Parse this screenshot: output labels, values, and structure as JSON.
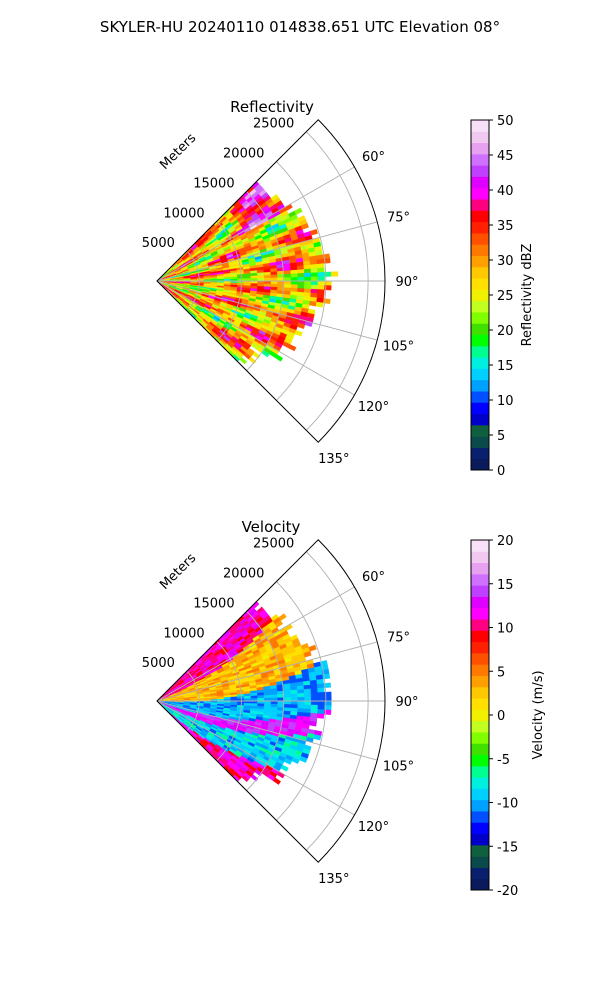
{
  "figure_title": "SKYLER-HU  20240110  014838.651 UTC Elevation 08°",
  "colormap": [
    "#0a1a5a",
    "#08206e",
    "#0a4a4a",
    "#106040",
    "#0000c8",
    "#0000ff",
    "#0050ff",
    "#00a0ff",
    "#00d0ff",
    "#00f0e0",
    "#00ff90",
    "#00ff00",
    "#40e000",
    "#80ff00",
    "#c0ff20",
    "#f0f000",
    "#ffe000",
    "#ffc800",
    "#ffa000",
    "#ff7800",
    "#ff5000",
    "#ff2000",
    "#ff0000",
    "#ff0080",
    "#ff00ff",
    "#e000ff",
    "#c040ff",
    "#d070ff",
    "#e8a0f0",
    "#f0c8f0",
    "#f8e0f8"
  ],
  "chart_data": [
    {
      "type": "heatmap",
      "projection": "polar-sector",
      "title": "Reflectivity",
      "radial_label": "Meters",
      "theta_range_deg": [
        45,
        135
      ],
      "theta_ticks": [
        "60°",
        "75°",
        "90°",
        "105°",
        "120°",
        "135°"
      ],
      "r_max": 27000,
      "r_ticks": [
        "5000",
        "10000",
        "15000",
        "20000",
        "25000"
      ],
      "colorbar": {
        "label": "Reflectivity dBZ",
        "range": [
          0,
          50
        ],
        "ticks": [
          "0",
          "5",
          "10",
          "15",
          "20",
          "25",
          "30",
          "35",
          "40",
          "45",
          "50"
        ]
      },
      "typical_value": 30
    },
    {
      "type": "heatmap",
      "projection": "polar-sector",
      "title": "Velocity",
      "radial_label": "Meters",
      "theta_range_deg": [
        45,
        135
      ],
      "theta_ticks": [
        "60°",
        "75°",
        "90°",
        "105°",
        "120°",
        "135°"
      ],
      "r_max": 27000,
      "r_ticks": [
        "5000",
        "10000",
        "15000",
        "20000",
        "25000"
      ],
      "colorbar": {
        "label": "Velocity (m/s)",
        "range": [
          -20,
          20
        ],
        "ticks": [
          "-20",
          "-15",
          "-10",
          "-5",
          "0",
          "5",
          "10",
          "15",
          "20"
        ]
      },
      "typical_value": 5
    }
  ]
}
